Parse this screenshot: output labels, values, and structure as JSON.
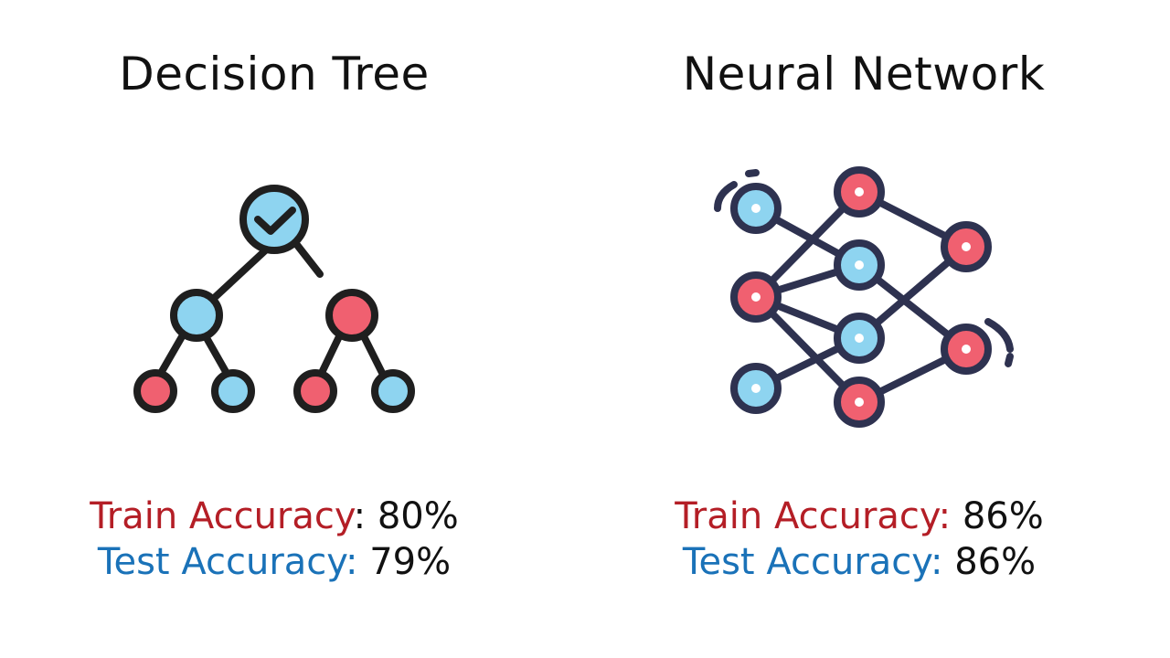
{
  "colors": {
    "train": "#b41e26",
    "test": "#1a72b8",
    "text": "#111111",
    "outline": "#1f1f1f",
    "network_outline": "#2e3250",
    "node_blue": "#8ed4f0",
    "node_red": "#f06070"
  },
  "panels": [
    {
      "title": "Decision Tree",
      "icon": "decision-tree-icon",
      "train_label": "Train Accuracy",
      "train_sep": ": ",
      "train_value": "80%",
      "test_label": "Test Accuracy:",
      "test_value": "79%"
    },
    {
      "title": "Neural Network",
      "icon": "neural-network-icon",
      "train_label": "Train Accuracy:",
      "train_sep": " ",
      "train_value": "86%",
      "test_label": "Test Accuracy:",
      "test_value": "86%"
    }
  ]
}
